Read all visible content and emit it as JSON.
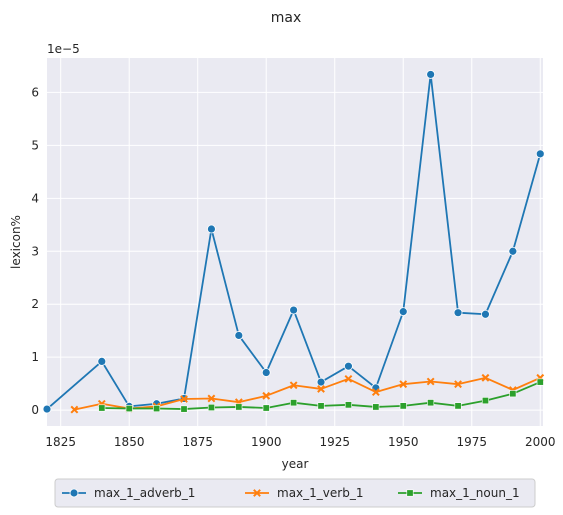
{
  "chart_data": {
    "type": "line",
    "title": "max",
    "xlabel": "year",
    "ylabel": "lexicon%",
    "y_scale_label": "1e−5",
    "xlim": [
      1820,
      2001
    ],
    "ylim": [
      -0.3,
      6.65
    ],
    "x_ticks": [
      1825,
      1850,
      1875,
      1900,
      1925,
      1950,
      1975,
      2000
    ],
    "y_ticks": [
      0,
      1,
      2,
      3,
      4,
      5,
      6
    ],
    "grid": true,
    "legend_position": "bottom-center",
    "series": [
      {
        "name": "max_1_adverb_1",
        "color": "#1f77b4",
        "marker": "circle",
        "x": [
          1820,
          1840,
          1850,
          1860,
          1870,
          1880,
          1890,
          1900,
          1910,
          1920,
          1930,
          1940,
          1950,
          1960,
          1970,
          1980,
          1990,
          2000
        ],
        "values": [
          0.02,
          0.92,
          0.07,
          0.12,
          0.22,
          3.42,
          1.41,
          0.71,
          1.89,
          0.53,
          0.83,
          0.42,
          1.86,
          6.34,
          1.84,
          1.81,
          3.0,
          4.84
        ]
      },
      {
        "name": "max_1_verb_1",
        "color": "#ff7f0e",
        "marker": "x",
        "x": [
          1830,
          1840,
          1850,
          1860,
          1870,
          1880,
          1890,
          1900,
          1910,
          1920,
          1930,
          1940,
          1950,
          1960,
          1970,
          1980,
          1990,
          2000
        ],
        "values": [
          0.01,
          0.12,
          0.03,
          0.07,
          0.21,
          0.22,
          0.15,
          0.27,
          0.47,
          0.4,
          0.59,
          0.34,
          0.49,
          0.54,
          0.49,
          0.61,
          0.38,
          0.61
        ]
      },
      {
        "name": "max_1_noun_1",
        "color": "#2ca02c",
        "marker": "square",
        "x": [
          1840,
          1850,
          1860,
          1870,
          1880,
          1890,
          1900,
          1910,
          1920,
          1930,
          1940,
          1950,
          1960,
          1970,
          1980,
          1990,
          2000
        ],
        "values": [
          0.04,
          0.03,
          0.03,
          0.02,
          0.05,
          0.06,
          0.04,
          0.14,
          0.08,
          0.1,
          0.06,
          0.08,
          0.14,
          0.08,
          0.18,
          0.31,
          0.53
        ]
      }
    ]
  }
}
